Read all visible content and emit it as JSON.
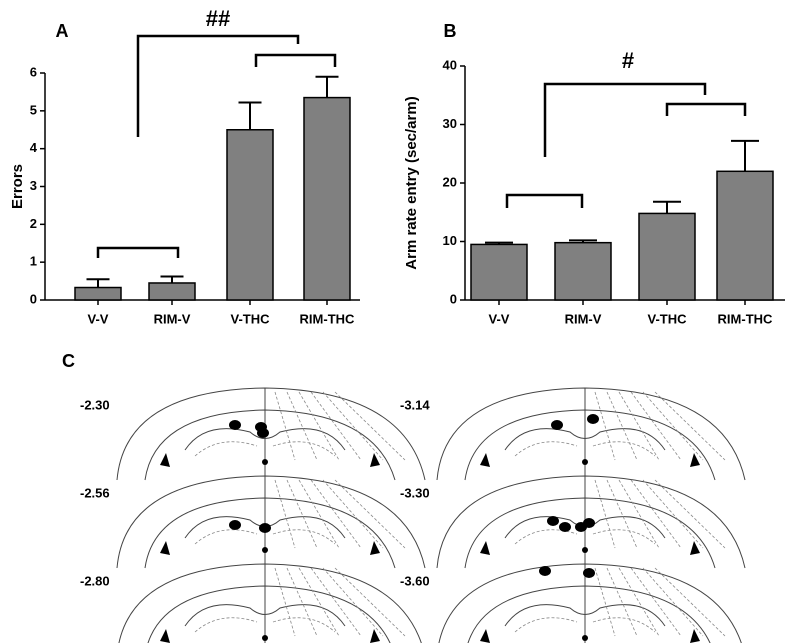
{
  "chart_data": [
    {
      "type": "bar",
      "panel_label": "A",
      "y_label": "Errors",
      "categories": [
        "V-V",
        "RIM-V",
        "V-THC",
        "RIM-THC"
      ],
      "values": [
        0.33,
        0.45,
        4.5,
        5.35
      ],
      "errors": [
        0.22,
        0.17,
        0.72,
        0.55
      ],
      "color": "#808080",
      "ylim": [
        0,
        6
      ],
      "yticks": [
        0,
        1,
        2,
        3,
        4,
        5,
        6
      ],
      "annotations": [
        "##"
      ]
    },
    {
      "type": "bar",
      "panel_label": "B",
      "y_label": "Arm rate entry (sec/arm)",
      "categories": [
        "V-V",
        "RIM-V",
        "V-THC",
        "RIM-THC"
      ],
      "values": [
        9.5,
        9.8,
        14.8,
        22
      ],
      "errors": [
        0.3,
        0.4,
        2.0,
        5.2
      ],
      "color": "#808080",
      "ylim": [
        0,
        40
      ],
      "yticks": [
        0,
        10,
        20,
        30,
        40
      ],
      "annotations": [
        "#"
      ]
    }
  ],
  "panel_c": {
    "label": "C",
    "sections": [
      "-2.30",
      "-2.56",
      "-2.80",
      "-3.14",
      "-3.30",
      "-3.60"
    ]
  }
}
